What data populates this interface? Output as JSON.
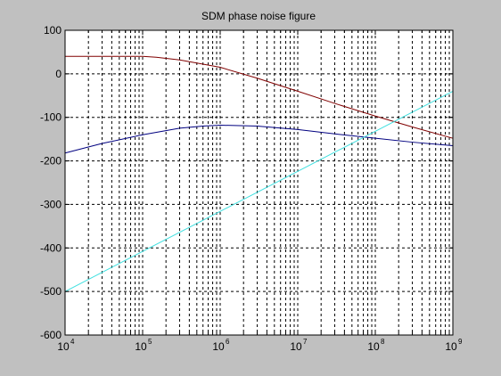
{
  "chart_data": {
    "type": "line",
    "title": "SDM phase noise figure",
    "xlabel": "",
    "ylabel": "",
    "x_scale": "log",
    "xlim": [
      10000,
      1000000000
    ],
    "ylim": [
      -600,
      100
    ],
    "x_ticks": [
      {
        "value": 10000,
        "base": "10",
        "exp": "4"
      },
      {
        "value": 100000,
        "base": "10",
        "exp": "5"
      },
      {
        "value": 1000000,
        "base": "10",
        "exp": "6"
      },
      {
        "value": 10000000,
        "base": "10",
        "exp": "7"
      },
      {
        "value": 100000000,
        "base": "10",
        "exp": "8"
      },
      {
        "value": 1000000000,
        "base": "10",
        "exp": "9"
      }
    ],
    "y_ticks": [
      100,
      0,
      -100,
      -200,
      -300,
      -400,
      -500,
      -600
    ],
    "grid": true,
    "background": "#ffffff",
    "series": [
      {
        "color": "#800000",
        "points": [
          [
            10000,
            40
          ],
          [
            30000,
            40
          ],
          [
            100000,
            40
          ],
          [
            150000,
            38
          ],
          [
            300000,
            32
          ],
          [
            1000000,
            15
          ],
          [
            3000000,
            -10
          ],
          [
            10000000,
            -40
          ],
          [
            30000000,
            -68
          ],
          [
            100000000,
            -97
          ],
          [
            300000000,
            -122
          ],
          [
            1000000000,
            -148
          ]
        ]
      },
      {
        "color": "#000080",
        "points": [
          [
            10000,
            -182
          ],
          [
            30000,
            -160
          ],
          [
            100000,
            -140
          ],
          [
            300000,
            -125
          ],
          [
            600000,
            -120
          ],
          [
            1000000,
            -118
          ],
          [
            3000000,
            -120
          ],
          [
            10000000,
            -128
          ],
          [
            30000000,
            -138
          ],
          [
            100000000,
            -148
          ],
          [
            300000000,
            -157
          ],
          [
            1000000000,
            -165
          ]
        ]
      },
      {
        "color": "#40e0e0",
        "points": [
          [
            10000,
            -500
          ],
          [
            1000000000,
            -40
          ]
        ]
      }
    ]
  }
}
